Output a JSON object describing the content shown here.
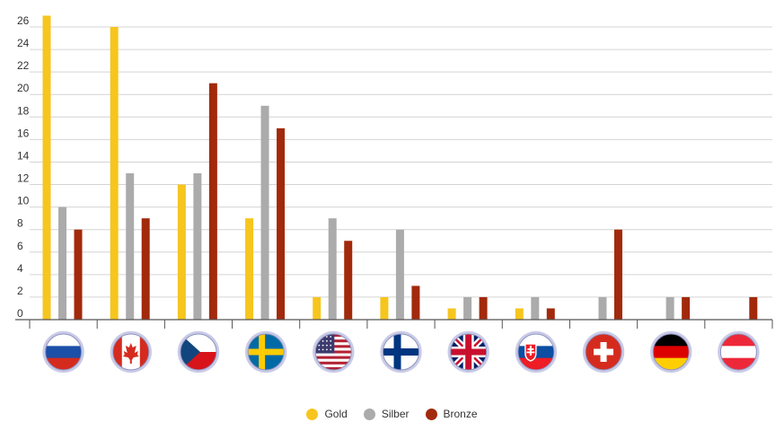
{
  "chart_data": {
    "type": "bar",
    "categories": [
      "Russland",
      "Kanada",
      "Tschechien",
      "Schweden",
      "USA",
      "Finnland",
      "Großbritannien",
      "Slowakei",
      "Schweiz",
      "Deutschland",
      "Österreich"
    ],
    "category_icons": [
      "flag-russia-icon",
      "flag-canada-icon",
      "flag-czech-icon",
      "flag-sweden-icon",
      "flag-usa-icon",
      "flag-finland-icon",
      "flag-uk-icon",
      "flag-slovakia-icon",
      "flag-switzerland-icon",
      "flag-germany-icon",
      "flag-austria-icon"
    ],
    "series": [
      {
        "name": "Gold",
        "color": "#F6C51E",
        "values": [
          27,
          26,
          12,
          9,
          2,
          2,
          1,
          1,
          0,
          0,
          0
        ]
      },
      {
        "name": "Silber",
        "color": "#ABABAB",
        "values": [
          10,
          13,
          13,
          19,
          9,
          8,
          2,
          2,
          2,
          2,
          0
        ]
      },
      {
        "name": "Bronze",
        "color": "#A2290C",
        "values": [
          8,
          9,
          21,
          17,
          7,
          3,
          2,
          1,
          8,
          2,
          2
        ]
      }
    ],
    "y_ticks": [
      "0",
      "2",
      "4",
      "6",
      "8",
      "10",
      "12",
      "14",
      "16",
      "18",
      "20",
      "22",
      "24",
      "26"
    ],
    "ylim": [
      0,
      26
    ],
    "grid": true,
    "legend_position": "bottom",
    "title": "",
    "xlabel": "",
    "ylabel": ""
  },
  "legend": {
    "items": [
      {
        "label": "Gold",
        "color": "#F6C51E"
      },
      {
        "label": "Silber",
        "color": "#ABABAB"
      },
      {
        "label": "Bronze",
        "color": "#A2290C"
      }
    ]
  }
}
